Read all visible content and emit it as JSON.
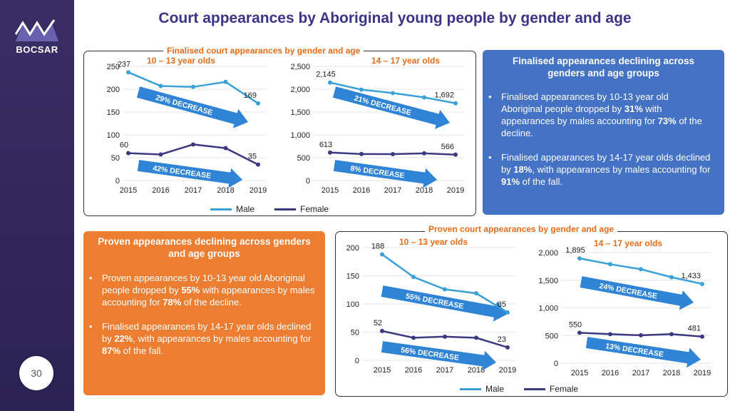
{
  "page": {
    "title": "Court appearances by Aboriginal young people by gender and age",
    "brand": "BOCSAR",
    "page_number": "30",
    "logo_icon": "bocsar-logo-icon"
  },
  "colors": {
    "male": "#3aa0d8",
    "female": "#3d3882",
    "arrow": "#2f84d5",
    "accent_orange": "#e36c19",
    "panel_blue": "#4472c4",
    "panel_orange": "#ed7d31"
  },
  "top_panel": {
    "title": "Finalised court appearances by gender and age",
    "legend_male": "Male",
    "legend_female": "Female"
  },
  "bottom_panel": {
    "title": "Proven court appearances by gender and age",
    "legend_male": "Male",
    "legend_female": "Female"
  },
  "info_finalised": {
    "heading": "Finalised appearances declining across genders and age groups",
    "b1_pre": "Finalised appearances by 10-13 year old Aboriginal people dropped by ",
    "b1_pct": "31%",
    "b1_mid": " with appearances by males accounting for ",
    "b1_pct2": "73%",
    "b1_post": "  of the decline.",
    "b2_pre": "Finalised appearances by 14-17 year olds declined by ",
    "b2_pct": "18%",
    "b2_mid": ", with appearances by males accounting for ",
    "b2_pct2": "91%",
    "b2_post": " of the fall."
  },
  "info_proven": {
    "heading": "Proven appearances declining across genders and age groups",
    "b1_pre": "Proven appearances by 10-13 year old Aboriginal people dropped by ",
    "b1_pct": "55%",
    "b1_mid": " with appearances by males accounting for ",
    "b1_pct2": "78%",
    "b1_post": "  of the decline.",
    "b2_pre": "Finalised appearances by 14-17 year olds declined by ",
    "b2_pct": "22%",
    "b2_mid": ", with appearances by males accounting for ",
    "b2_pct2": "87%",
    "b2_post": " of the fall."
  },
  "chart_data": [
    {
      "id": "fin1013",
      "type": "line",
      "title": "10 – 13 year olds",
      "categories": [
        "2015",
        "2016",
        "2017",
        "2018",
        "2019"
      ],
      "ylim": [
        0,
        250
      ],
      "yticks": [
        0,
        50,
        100,
        150,
        200,
        250
      ],
      "ytick_labels": [
        "0",
        "50",
        "100",
        "150",
        "200",
        "250"
      ],
      "series": [
        {
          "name": "Male",
          "values": [
            237,
            207,
            205,
            216,
            169
          ],
          "labels": [
            "237",
            "",
            "",
            "",
            "169"
          ]
        },
        {
          "name": "Female",
          "values": [
            60,
            57,
            79,
            71,
            35
          ],
          "labels": [
            "60",
            "",
            "",
            "",
            "35"
          ]
        }
      ],
      "annotations": [
        "29% DECREASE",
        "42% DECREASE"
      ]
    },
    {
      "id": "fin1417",
      "type": "line",
      "title": "14 – 17 year olds",
      "categories": [
        "2015",
        "2016",
        "2017",
        "2018",
        "2019"
      ],
      "ylim": [
        0,
        2500
      ],
      "yticks": [
        0,
        500,
        1000,
        1500,
        2000,
        2500
      ],
      "ytick_labels": [
        "0",
        "500",
        "1,000",
        "1,500",
        "2,000",
        "2,500"
      ],
      "series": [
        {
          "name": "Male",
          "values": [
            2145,
            1990,
            1915,
            1820,
            1692
          ],
          "labels": [
            "2,145",
            "",
            "",
            "",
            "1,692"
          ]
        },
        {
          "name": "Female",
          "values": [
            613,
            580,
            578,
            595,
            566
          ],
          "labels": [
            "613",
            "",
            "",
            "",
            "566"
          ]
        }
      ],
      "annotations": [
        "21% DECREASE",
        "8% DECREASE"
      ]
    },
    {
      "id": "pro1013",
      "type": "line",
      "title": "10 – 13 year olds",
      "categories": [
        "2015",
        "2016",
        "2017",
        "2018",
        "2019"
      ],
      "ylim": [
        0,
        200
      ],
      "yticks": [
        0,
        50,
        100,
        150,
        200
      ],
      "ytick_labels": [
        "0",
        "50",
        "100",
        "150",
        "200"
      ],
      "series": [
        {
          "name": "Male",
          "values": [
            188,
            148,
            126,
            119,
            85
          ],
          "labels": [
            "188",
            "",
            "",
            "",
            "85"
          ]
        },
        {
          "name": "Female",
          "values": [
            52,
            40,
            42,
            40,
            23
          ],
          "labels": [
            "52",
            "",
            "",
            "",
            "23"
          ]
        }
      ],
      "annotations": [
        "55% DECREASE",
        "56% DECREASE"
      ]
    },
    {
      "id": "pro1417",
      "type": "line",
      "title": "14 – 17 year olds",
      "categories": [
        "2015",
        "2016",
        "2017",
        "2018",
        "2019"
      ],
      "ylim": [
        0,
        2000
      ],
      "yticks": [
        0,
        500,
        1000,
        1500,
        2000
      ],
      "ytick_labels": [
        "0",
        "500",
        "1,000",
        "1,500",
        "2,000"
      ],
      "series": [
        {
          "name": "Male",
          "values": [
            1895,
            1790,
            1700,
            1555,
            1433
          ],
          "labels": [
            "1,895",
            "",
            "",
            "",
            "1,433"
          ]
        },
        {
          "name": "Female",
          "values": [
            550,
            525,
            505,
            525,
            481
          ],
          "labels": [
            "550",
            "",
            "",
            "",
            "481"
          ]
        }
      ],
      "annotations": [
        "24% DECREASE",
        "13% DECREASE"
      ]
    }
  ]
}
